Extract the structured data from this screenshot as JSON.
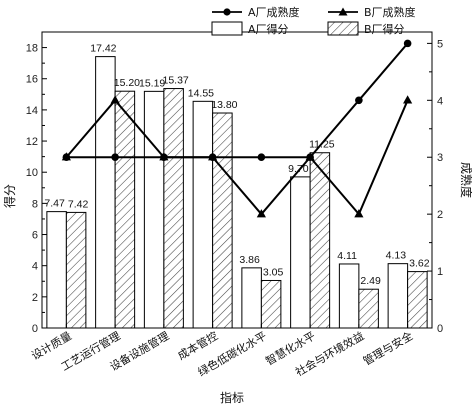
{
  "chart_data": {
    "type": "bar",
    "categories": [
      "设计质量",
      "工艺运行管理",
      "设备设施管理",
      "成本管控",
      "绿色低碳化水平",
      "智慧化水平",
      "社会与环境效益",
      "管理与安全"
    ],
    "xlabel": "指标",
    "ylabel": "得分",
    "y2label": "成熟度",
    "ylim": [
      0,
      19
    ],
    "y2lim": [
      0,
      5.2
    ],
    "yticks": [
      0,
      2,
      4,
      6,
      8,
      10,
      12,
      14,
      16,
      18
    ],
    "y2ticks": [
      0,
      1,
      2,
      3,
      4,
      5
    ],
    "bar_series": [
      {
        "name": "A厂得分",
        "values": [
          7.47,
          17.42,
          15.19,
          14.55,
          3.86,
          9.7,
          4.11,
          4.13
        ],
        "labels": [
          "7.47",
          "17.42",
          "15.19",
          "14.55",
          "3.86",
          "9.70",
          "4.11",
          "4.13"
        ],
        "style": "open"
      },
      {
        "name": "B厂得分",
        "values": [
          7.42,
          15.2,
          15.37,
          13.8,
          3.05,
          11.25,
          2.49,
          3.62
        ],
        "labels": [
          "7.42",
          "15.20",
          "15.37",
          "13.80",
          "3.05",
          "11.25",
          "2.49",
          "3.62"
        ],
        "style": "hatched"
      }
    ],
    "line_series": [
      {
        "name": "A厂成熟度",
        "values": [
          3,
          3,
          3,
          3,
          3,
          3,
          4,
          5
        ],
        "marker": "circle",
        "axis": "right"
      },
      {
        "name": "B厂成熟度",
        "values": [
          3,
          4,
          3,
          3,
          2,
          3,
          2,
          4
        ],
        "marker": "triangle",
        "axis": "right"
      }
    ],
    "legend": "top-right"
  }
}
